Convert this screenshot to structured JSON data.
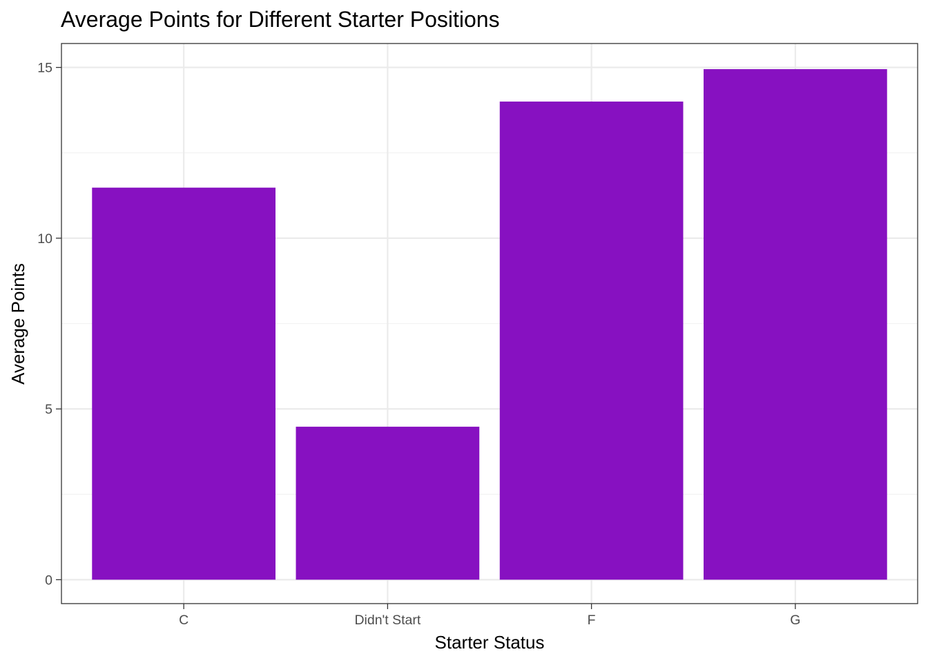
{
  "chart_data": {
    "type": "bar",
    "title": "Average Points for Different Starter Positions",
    "xlabel": "Starter Status",
    "ylabel": "Average Points",
    "categories": [
      "C",
      "Didn't Start",
      "F",
      "G"
    ],
    "values": [
      11.48,
      4.48,
      14.0,
      14.95
    ],
    "ylim": [
      -0.7,
      15.7
    ],
    "yticks": [
      0,
      5,
      10,
      15
    ],
    "ytick_labels": [
      "0",
      "5",
      "10",
      "15"
    ],
    "grid": true,
    "legend": "none",
    "colors": {
      "bar": "#8711C1",
      "grid_major": "#EBEBEB",
      "grid_minor": "#F3F3F3",
      "panel_border": "#333333",
      "tick_label": "#4D4D4D"
    }
  }
}
